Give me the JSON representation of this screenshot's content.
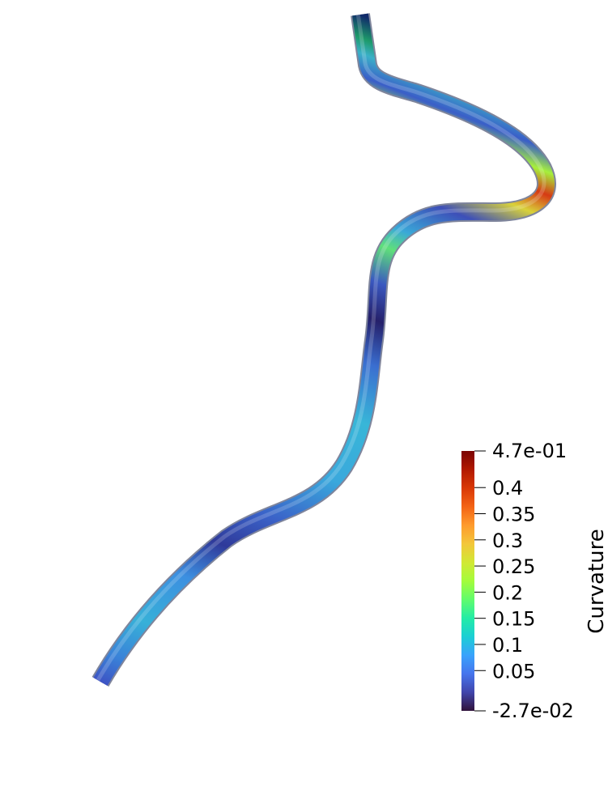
{
  "scalar_bar": {
    "title": "Curvature",
    "range": [
      -0.027,
      0.47
    ],
    "max_label": "4.7e-01",
    "min_label": "-2.7e-02",
    "ticks": [
      {
        "value": 0.4,
        "label": "0.4"
      },
      {
        "value": 0.35,
        "label": "0.35"
      },
      {
        "value": 0.3,
        "label": "0.3"
      },
      {
        "value": 0.25,
        "label": "0.25"
      },
      {
        "value": 0.2,
        "label": "0.2"
      },
      {
        "value": 0.15,
        "label": "0.15"
      },
      {
        "value": 0.1,
        "label": "0.1"
      },
      {
        "value": 0.05,
        "label": "0.05"
      }
    ],
    "colormap": [
      "#30123b",
      "#4145ab",
      "#4675ed",
      "#39a2fc",
      "#1bcfd4",
      "#24eca6",
      "#61fc6c",
      "#a4fc3b",
      "#d1e834",
      "#f3c63a",
      "#fe9b2d",
      "#f36315",
      "#d93806",
      "#b11901",
      "#7a0402"
    ]
  }
}
